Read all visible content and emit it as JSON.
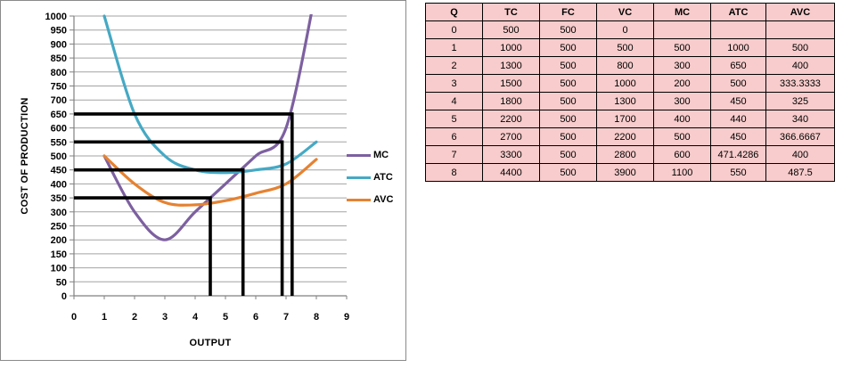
{
  "chart_data": {
    "type": "line",
    "x": [
      1,
      2,
      3,
      4,
      5,
      6,
      7,
      8
    ],
    "series": [
      {
        "name": "MC",
        "color": "#7d60a0",
        "values": [
          500,
          300,
          200,
          300,
          400,
          500,
          600,
          1100
        ]
      },
      {
        "name": "ATC",
        "color": "#45a9c4",
        "values": [
          1000,
          650,
          500,
          450,
          440,
          450,
          471.4286,
          550
        ]
      },
      {
        "name": "AVC",
        "color": "#e58232",
        "values": [
          500,
          400,
          333.3333,
          325,
          340,
          366.6667,
          400,
          487.5
        ]
      }
    ],
    "title": "",
    "xlabel": "OUTPUT",
    "ylabel": "COST OF PRODUCTION",
    "xlim": [
      0,
      9
    ],
    "ylim": [
      0,
      1000
    ],
    "y_tick_step": 50,
    "x_ticks": [
      0,
      1,
      2,
      3,
      4,
      5,
      6,
      7,
      8,
      9
    ],
    "grid": "horizontal",
    "legend_position": "right",
    "annotations": [
      {
        "y": 650,
        "x": 7.2
      },
      {
        "y": 550,
        "x": 6.87
      },
      {
        "y": 450,
        "x": 5.58
      },
      {
        "y": 350,
        "x": 4.5
      }
    ],
    "colors": {
      "gridline": "#a3a3a3",
      "axis": "#808080",
      "tick_label": "#000000",
      "annotation": "#000000"
    }
  },
  "table": {
    "headers": [
      "Q",
      "TC",
      "FC",
      "VC",
      "MC",
      "ATC",
      "AVC"
    ],
    "rows": [
      [
        "0",
        "500",
        "500",
        "0",
        "",
        "",
        ""
      ],
      [
        "1",
        "1000",
        "500",
        "500",
        "500",
        "1000",
        "500"
      ],
      [
        "2",
        "1300",
        "500",
        "800",
        "300",
        "650",
        "400"
      ],
      [
        "3",
        "1500",
        "500",
        "1000",
        "200",
        "500",
        "333.3333"
      ],
      [
        "4",
        "1800",
        "500",
        "1300",
        "300",
        "450",
        "325"
      ],
      [
        "5",
        "2200",
        "500",
        "1700",
        "400",
        "440",
        "340"
      ],
      [
        "6",
        "2700",
        "500",
        "2200",
        "500",
        "450",
        "366.6667"
      ],
      [
        "7",
        "3300",
        "500",
        "2800",
        "600",
        "471.4286",
        "400"
      ],
      [
        "8",
        "4400",
        "500",
        "3900",
        "1100",
        "550",
        "487.5"
      ]
    ],
    "fill_color": "#f8cccc",
    "border_color": "#000000"
  }
}
